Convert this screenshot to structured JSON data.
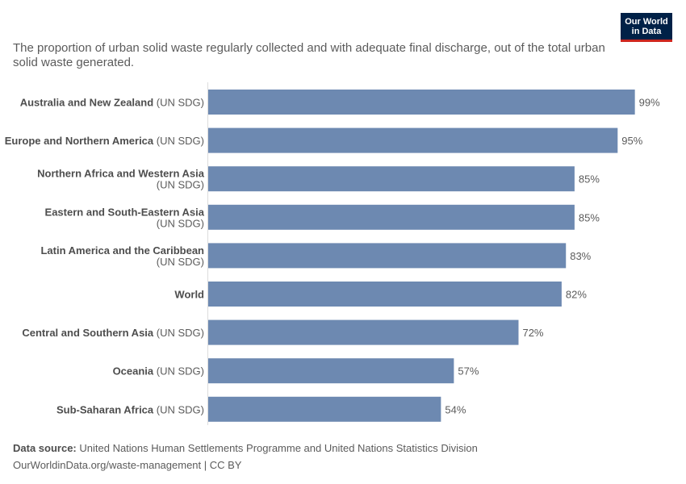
{
  "logo": {
    "line1": "Our World",
    "line2": "in Data"
  },
  "subtitle": "The proportion of urban solid waste regularly collected and with adequate final discharge, out of the total urban solid waste generated.",
  "footer": {
    "source_label": "Data source:",
    "source_text": "United Nations Human Settlements Programme and United Nations Statistics Division",
    "url_text": "OurWorldinData.org/waste-management | CC BY"
  },
  "colors": {
    "bar": "#6d89b1",
    "axis": "#dddddd"
  },
  "chart_data": {
    "type": "bar",
    "orientation": "horizontal",
    "title": "",
    "xlim": [
      0,
      100
    ],
    "categories": [
      {
        "name": "Australia and New Zealand",
        "suffix": "(UN SDG)",
        "wrap": false
      },
      {
        "name": "Europe and Northern America",
        "suffix": "(UN SDG)",
        "wrap": false
      },
      {
        "name": "Northern Africa and Western Asia",
        "suffix": "(UN SDG)",
        "wrap": true
      },
      {
        "name": "Eastern and South-Eastern Asia",
        "suffix": "(UN SDG)",
        "wrap": true
      },
      {
        "name": "Latin America and the Caribbean",
        "suffix": "(UN SDG)",
        "wrap": true
      },
      {
        "name": "World",
        "suffix": "",
        "wrap": false
      },
      {
        "name": "Central and Southern Asia",
        "suffix": "(UN SDG)",
        "wrap": false
      },
      {
        "name": "Oceania",
        "suffix": "(UN SDG)",
        "wrap": false
      },
      {
        "name": "Sub-Saharan Africa",
        "suffix": "(UN SDG)",
        "wrap": false
      }
    ],
    "values": [
      99,
      95,
      85,
      85,
      83,
      82,
      72,
      57,
      54
    ],
    "value_labels": [
      "99%",
      "95%",
      "85%",
      "85%",
      "83%",
      "82%",
      "72%",
      "57%",
      "54%"
    ]
  }
}
